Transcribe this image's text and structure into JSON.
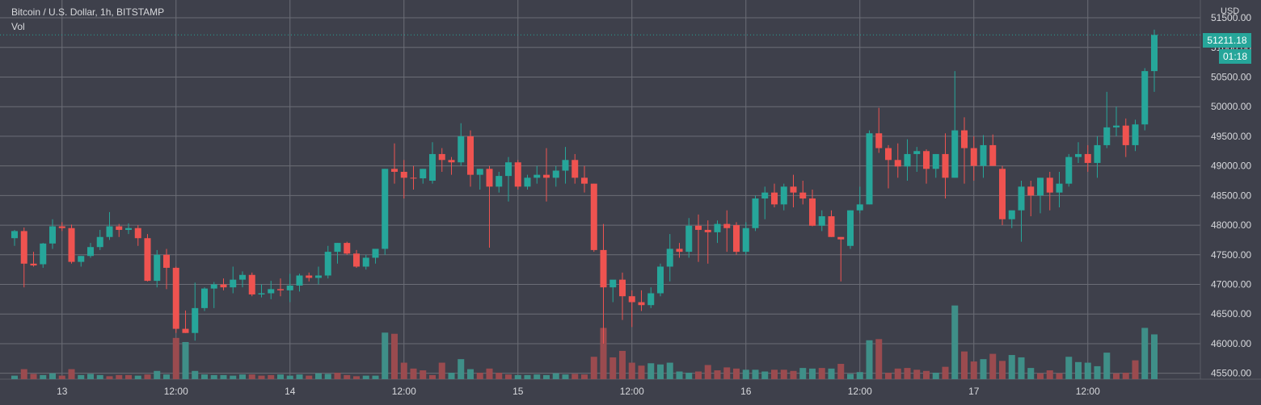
{
  "header": {
    "symbol_title": "Bitcoin / U.S. Dollar, 1h, BITSTAMP",
    "volume_label": "Vol"
  },
  "price_axis": {
    "currency": "USD",
    "last_price": "51211.18",
    "countdown": "01:18"
  },
  "colors": {
    "background": "#3e404b",
    "grid": "#6b6d76",
    "up": "#26a69a",
    "down": "#ef5350",
    "up_volume": "#3f8f88",
    "down_volume": "#9a4b4f",
    "text": "#d7d8dc"
  },
  "chart_data": {
    "type": "candlestick",
    "interval": "1h",
    "ylim": [
      45400,
      51800
    ],
    "y_ticks": [
      "45500.00",
      "46000.00",
      "46500.00",
      "47000.00",
      "47500.00",
      "48000.00",
      "48500.00",
      "49000.00",
      "49500.00",
      "50000.00",
      "50500.00",
      "51000.00",
      "51500.00"
    ],
    "x_ticks": [
      "13",
      "12:00",
      "14",
      "12:00",
      "15",
      "12:00",
      "16",
      "12:00",
      "17",
      "12:00"
    ],
    "x_tick_index": [
      5,
      17,
      29,
      41,
      53,
      65,
      77,
      89,
      101,
      113
    ],
    "ohlc": [
      [
        47780,
        47920,
        47650,
        47900
      ],
      [
        47900,
        47960,
        46950,
        47350
      ],
      [
        47350,
        47550,
        47300,
        47320
      ],
      [
        47340,
        47700,
        47280,
        47690
      ],
      [
        47690,
        48100,
        47600,
        47980
      ],
      [
        47980,
        48050,
        47900,
        47950
      ],
      [
        47950,
        48010,
        47350,
        47380
      ],
      [
        47380,
        47480,
        47300,
        47480
      ],
      [
        47480,
        47700,
        47450,
        47630
      ],
      [
        47630,
        47920,
        47580,
        47800
      ],
      [
        47800,
        48220,
        47750,
        47980
      ],
      [
        47980,
        48020,
        47800,
        47920
      ],
      [
        47920,
        48030,
        47850,
        47950
      ],
      [
        47950,
        48000,
        47650,
        47780
      ],
      [
        47780,
        47850,
        47050,
        47060
      ],
      [
        47060,
        47580,
        46950,
        47500
      ],
      [
        47500,
        47600,
        46920,
        47280
      ],
      [
        47280,
        47300,
        46180,
        46250
      ],
      [
        46250,
        46560,
        46180,
        46180
      ],
      [
        46180,
        47030,
        46050,
        46600
      ],
      [
        46600,
        46950,
        46550,
        46930
      ],
      [
        46930,
        47040,
        46600,
        47000
      ],
      [
        47000,
        47100,
        46900,
        46950
      ],
      [
        46950,
        47300,
        46850,
        47080
      ],
      [
        47080,
        47220,
        46950,
        47160
      ],
      [
        47160,
        47200,
        46800,
        46830
      ],
      [
        46830,
        47000,
        46780,
        46850
      ],
      [
        46850,
        47060,
        46750,
        46920
      ],
      [
        46920,
        47100,
        46800,
        46900
      ],
      [
        46900,
        47180,
        46700,
        46980
      ],
      [
        46980,
        47180,
        46880,
        47150
      ],
      [
        47150,
        47200,
        47050,
        47110
      ],
      [
        47110,
        47300,
        47000,
        47150
      ],
      [
        47150,
        47650,
        47100,
        47550
      ],
      [
        47550,
        47700,
        47350,
        47700
      ],
      [
        47700,
        47720,
        47500,
        47520
      ],
      [
        47520,
        47580,
        47280,
        47300
      ],
      [
        47300,
        47500,
        47250,
        47450
      ],
      [
        47450,
        47600,
        47350,
        47600
      ],
      [
        47600,
        48950,
        47500,
        48950
      ],
      [
        48950,
        49380,
        48700,
        48900
      ],
      [
        48900,
        49100,
        48450,
        48800
      ],
      [
        48800,
        49000,
        48600,
        48790
      ],
      [
        48790,
        48950,
        48700,
        48950
      ],
      [
        48750,
        49400,
        48700,
        49200
      ],
      [
        49200,
        49300,
        48900,
        49100
      ],
      [
        49100,
        49150,
        48850,
        49060
      ],
      [
        49060,
        49720,
        49000,
        49500
      ],
      [
        49500,
        49600,
        48650,
        48850
      ],
      [
        48850,
        48950,
        48600,
        48950
      ],
      [
        48950,
        49000,
        47620,
        48650
      ],
      [
        48650,
        48900,
        48550,
        48830
      ],
      [
        48830,
        49150,
        48400,
        49060
      ],
      [
        49060,
        49100,
        48600,
        48650
      ],
      [
        48650,
        48850,
        48600,
        48800
      ],
      [
        48800,
        49000,
        48700,
        48850
      ],
      [
        48850,
        49300,
        48400,
        48800
      ],
      [
        48800,
        49000,
        48650,
        48920
      ],
      [
        48920,
        49320,
        48700,
        49100
      ],
      [
        49100,
        49200,
        48700,
        48800
      ],
      [
        48800,
        49000,
        48550,
        48700
      ],
      [
        48700,
        48700,
        47550,
        47580
      ],
      [
        47580,
        48020,
        46000,
        46950
      ],
      [
        46950,
        47050,
        46700,
        47080
      ],
      [
        47080,
        47200,
        46400,
        46800
      ],
      [
        46800,
        46900,
        46280,
        46700
      ],
      [
        46700,
        46900,
        46550,
        46650
      ],
      [
        46650,
        46950,
        46600,
        46850
      ],
      [
        46850,
        47350,
        46800,
        47300
      ],
      [
        47300,
        47850,
        47050,
        47600
      ],
      [
        47600,
        47700,
        47450,
        47550
      ],
      [
        47550,
        48120,
        47450,
        47990
      ],
      [
        47990,
        48180,
        47380,
        47920
      ],
      [
        47920,
        48080,
        47350,
        47880
      ],
      [
        47880,
        48080,
        47700,
        48020
      ],
      [
        48020,
        48250,
        47550,
        47950
      ],
      [
        48000,
        48050,
        47500,
        47550
      ],
      [
        47550,
        48050,
        47500,
        47950
      ],
      [
        47950,
        48500,
        47900,
        48450
      ],
      [
        48450,
        48650,
        48100,
        48550
      ],
      [
        48550,
        48700,
        48300,
        48350
      ],
      [
        48350,
        48700,
        48250,
        48650
      ],
      [
        48650,
        48850,
        48300,
        48550
      ],
      [
        48550,
        48750,
        48350,
        48450
      ],
      [
        48450,
        48600,
        47980,
        47990
      ],
      [
        47990,
        48250,
        47900,
        48150
      ],
      [
        48150,
        48250,
        47800,
        47800
      ],
      [
        47800,
        47800,
        47050,
        47760
      ],
      [
        47650,
        48250,
        47600,
        48250
      ],
      [
        48250,
        48650,
        48200,
        48350
      ],
      [
        48350,
        49600,
        48350,
        49550
      ],
      [
        49550,
        49980,
        49220,
        49300
      ],
      [
        49300,
        49350,
        48620,
        49100
      ],
      [
        49100,
        49380,
        48800,
        48990
      ],
      [
        48990,
        49450,
        48750,
        49200
      ],
      [
        49200,
        49320,
        48900,
        49250
      ],
      [
        49250,
        49280,
        48700,
        48950
      ],
      [
        48950,
        49200,
        48800,
        49200
      ],
      [
        49200,
        49550,
        48450,
        48800
      ],
      [
        48800,
        50600,
        48800,
        49600
      ],
      [
        49600,
        49820,
        48700,
        49300
      ],
      [
        49300,
        49500,
        48750,
        49000
      ],
      [
        49000,
        49520,
        48800,
        49350
      ],
      [
        49350,
        49530,
        49000,
        49000
      ],
      [
        48950,
        49000,
        48000,
        48100
      ],
      [
        48100,
        48200,
        47950,
        48250
      ],
      [
        48250,
        48750,
        47720,
        48650
      ],
      [
        48650,
        48750,
        48150,
        48500
      ],
      [
        48500,
        48800,
        48200,
        48800
      ],
      [
        48800,
        48900,
        48250,
        48550
      ],
      [
        48550,
        48900,
        48300,
        48700
      ],
      [
        48700,
        49200,
        48650,
        49150
      ],
      [
        49150,
        49400,
        49050,
        49200
      ],
      [
        49200,
        49350,
        48900,
        49050
      ],
      [
        49050,
        49500,
        48800,
        49350
      ],
      [
        49350,
        50250,
        49300,
        49650
      ],
      [
        49650,
        50000,
        49500,
        49680
      ],
      [
        49680,
        49800,
        49150,
        49350
      ],
      [
        49350,
        49780,
        49250,
        49700
      ],
      [
        49700,
        50650,
        49600,
        50600
      ],
      [
        50600,
        51300,
        50250,
        51211
      ]
    ],
    "volume": [
      [
        60,
        "up"
      ],
      [
        170,
        "down"
      ],
      [
        90,
        "down"
      ],
      [
        70,
        "up"
      ],
      [
        100,
        "up"
      ],
      [
        60,
        "down"
      ],
      [
        170,
        "down"
      ],
      [
        70,
        "up"
      ],
      [
        90,
        "up"
      ],
      [
        70,
        "up"
      ],
      [
        50,
        "down"
      ],
      [
        70,
        "down"
      ],
      [
        70,
        "down"
      ],
      [
        60,
        "up"
      ],
      [
        80,
        "down"
      ],
      [
        140,
        "up"
      ],
      [
        80,
        "up"
      ],
      [
        700,
        "down"
      ],
      [
        630,
        "up"
      ],
      [
        140,
        "up"
      ],
      [
        80,
        "up"
      ],
      [
        70,
        "up"
      ],
      [
        70,
        "up"
      ],
      [
        60,
        "up"
      ],
      [
        80,
        "up"
      ],
      [
        80,
        "down"
      ],
      [
        60,
        "down"
      ],
      [
        70,
        "down"
      ],
      [
        80,
        "up"
      ],
      [
        60,
        "up"
      ],
      [
        80,
        "up"
      ],
      [
        60,
        "down"
      ],
      [
        100,
        "up"
      ],
      [
        90,
        "up"
      ],
      [
        110,
        "down"
      ],
      [
        70,
        "down"
      ],
      [
        50,
        "down"
      ],
      [
        60,
        "up"
      ],
      [
        60,
        "up"
      ],
      [
        790,
        "up"
      ],
      [
        770,
        "down"
      ],
      [
        280,
        "down"
      ],
      [
        180,
        "down"
      ],
      [
        150,
        "down"
      ],
      [
        70,
        "down"
      ],
      [
        280,
        "down"
      ],
      [
        110,
        "up"
      ],
      [
        340,
        "up"
      ],
      [
        170,
        "up"
      ],
      [
        110,
        "down"
      ],
      [
        180,
        "down"
      ],
      [
        110,
        "down"
      ],
      [
        80,
        "down"
      ],
      [
        70,
        "up"
      ],
      [
        70,
        "up"
      ],
      [
        80,
        "up"
      ],
      [
        70,
        "up"
      ],
      [
        100,
        "up"
      ],
      [
        80,
        "up"
      ],
      [
        90,
        "down"
      ],
      [
        80,
        "down"
      ],
      [
        380,
        "down"
      ],
      [
        870,
        "down"
      ],
      [
        370,
        "down"
      ],
      [
        480,
        "down"
      ],
      [
        280,
        "down"
      ],
      [
        230,
        "down"
      ],
      [
        270,
        "up"
      ],
      [
        250,
        "up"
      ],
      [
        280,
        "up"
      ],
      [
        130,
        "up"
      ],
      [
        110,
        "up"
      ],
      [
        130,
        "down"
      ],
      [
        240,
        "down"
      ],
      [
        150,
        "down"
      ],
      [
        200,
        "down"
      ],
      [
        180,
        "down"
      ],
      [
        160,
        "up"
      ],
      [
        160,
        "up"
      ],
      [
        130,
        "up"
      ],
      [
        160,
        "down"
      ],
      [
        160,
        "down"
      ],
      [
        140,
        "down"
      ],
      [
        190,
        "up"
      ],
      [
        180,
        "up"
      ],
      [
        190,
        "down"
      ],
      [
        180,
        "up"
      ],
      [
        260,
        "down"
      ],
      [
        90,
        "up"
      ],
      [
        120,
        "up"
      ],
      [
        660,
        "up"
      ],
      [
        680,
        "down"
      ],
      [
        110,
        "down"
      ],
      [
        180,
        "down"
      ],
      [
        190,
        "down"
      ],
      [
        160,
        "down"
      ],
      [
        140,
        "down"
      ],
      [
        110,
        "up"
      ],
      [
        210,
        "down"
      ],
      [
        1250,
        "up"
      ],
      [
        470,
        "down"
      ],
      [
        300,
        "down"
      ],
      [
        340,
        "up"
      ],
      [
        430,
        "down"
      ],
      [
        310,
        "down"
      ],
      [
        410,
        "up"
      ],
      [
        370,
        "up"
      ],
      [
        190,
        "up"
      ],
      [
        100,
        "down"
      ],
      [
        150,
        "down"
      ],
      [
        100,
        "down"
      ],
      [
        380,
        "up"
      ],
      [
        290,
        "up"
      ],
      [
        280,
        "up"
      ],
      [
        220,
        "up"
      ],
      [
        450,
        "up"
      ],
      [
        100,
        "down"
      ],
      [
        110,
        "down"
      ],
      [
        320,
        "down"
      ],
      [
        870,
        "up"
      ],
      [
        760,
        "up"
      ]
    ],
    "volume_max": 1300
  }
}
